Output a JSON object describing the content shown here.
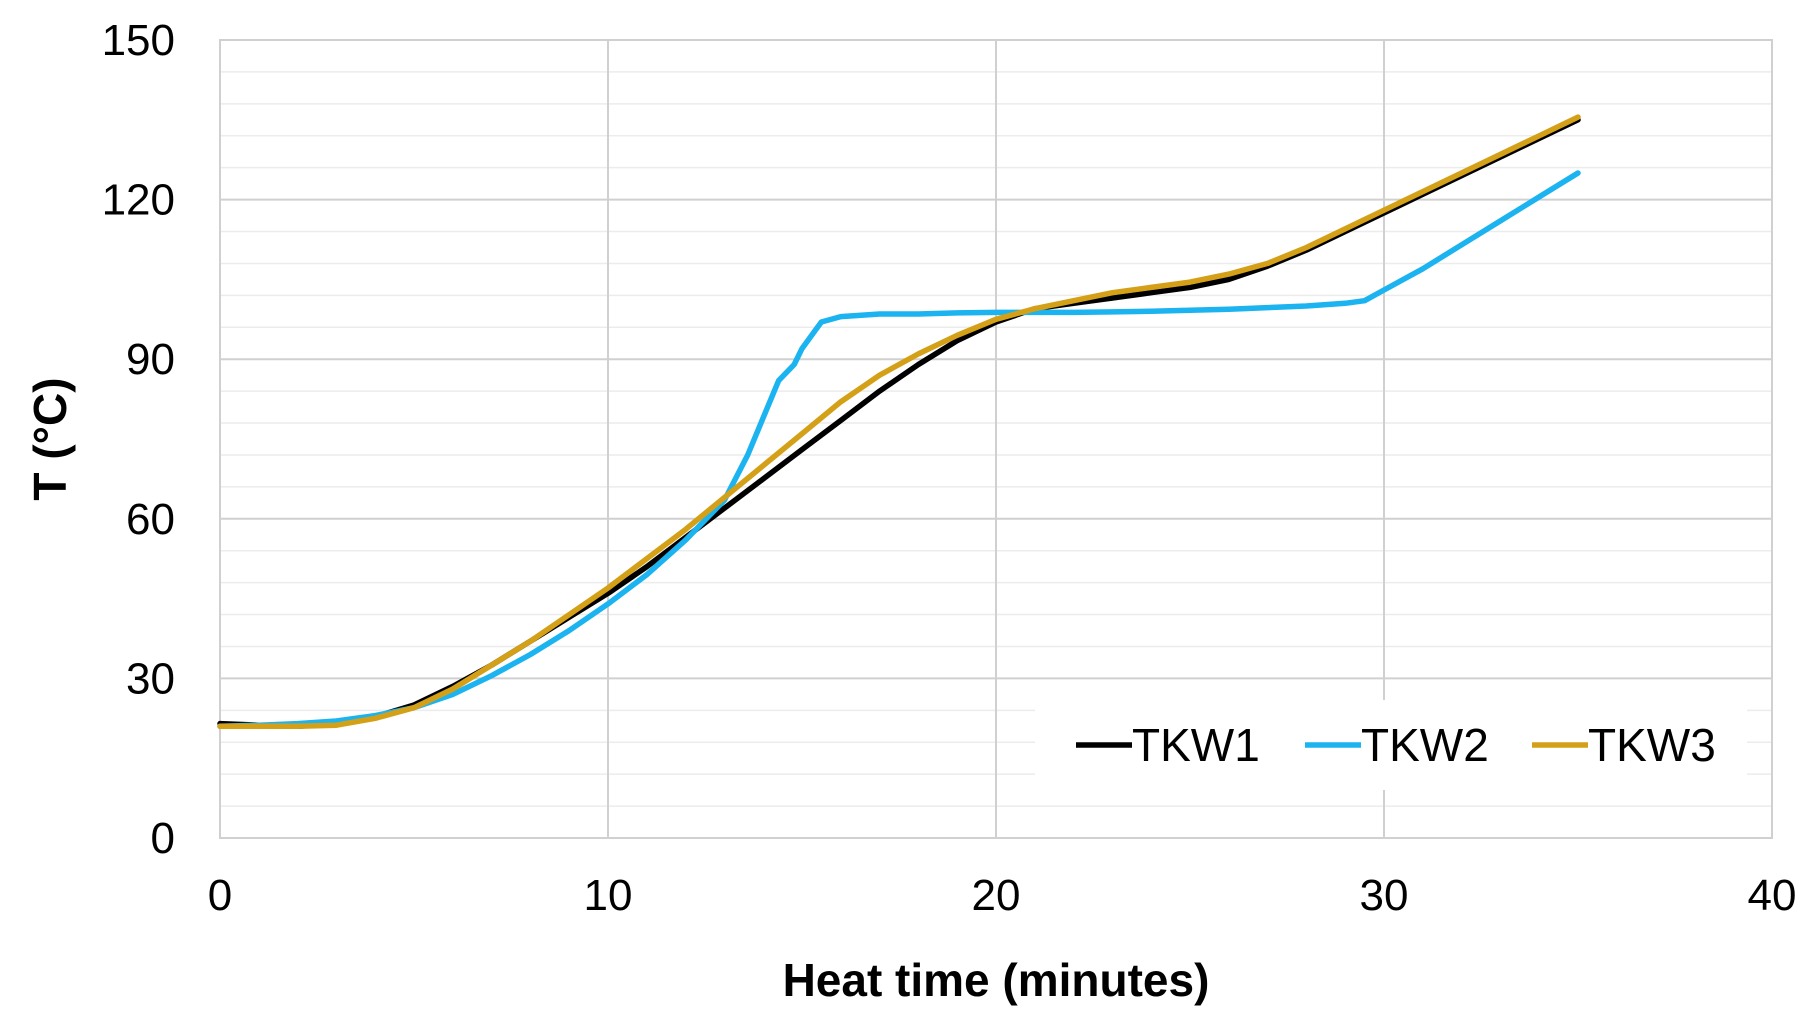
{
  "chart_data": {
    "type": "line",
    "title": "",
    "xlabel": "Heat time (minutes)",
    "ylabel": "T (°C)",
    "xlim": [
      0,
      40
    ],
    "ylim": [
      0,
      150
    ],
    "xticks": [
      0,
      10,
      20,
      30,
      40
    ],
    "yticks": [
      0,
      30,
      60,
      90,
      120,
      150
    ],
    "grid": true,
    "legend_position": "bottom-right",
    "series": [
      {
        "name": "TKW1",
        "color": "#000000",
        "points": [
          [
            0,
            21.5
          ],
          [
            1,
            21.2
          ],
          [
            2,
            21
          ],
          [
            3,
            21.5
          ],
          [
            4,
            22.8
          ],
          [
            5,
            25
          ],
          [
            6,
            28.5
          ],
          [
            7,
            32.5
          ],
          [
            8,
            37
          ],
          [
            9,
            41.5
          ],
          [
            10,
            46
          ],
          [
            11,
            51
          ],
          [
            12,
            56.5
          ],
          [
            13,
            62
          ],
          [
            14,
            67.5
          ],
          [
            15,
            73
          ],
          [
            16,
            78.5
          ],
          [
            17,
            84
          ],
          [
            18,
            89
          ],
          [
            19,
            93.5
          ],
          [
            20,
            97
          ],
          [
            21,
            99.5
          ],
          [
            22,
            100.5
          ],
          [
            23,
            101.5
          ],
          [
            24,
            102.5
          ],
          [
            25,
            103.5
          ],
          [
            26,
            105
          ],
          [
            27,
            107.5
          ],
          [
            28,
            110.5
          ],
          [
            29,
            114
          ],
          [
            30,
            117.5
          ],
          [
            31,
            121
          ],
          [
            32,
            124.5
          ],
          [
            33,
            128
          ],
          [
            34,
            131.5
          ],
          [
            35,
            135
          ]
        ]
      },
      {
        "name": "TKW2",
        "color": "#1BB3F0",
        "points": [
          [
            0,
            21
          ],
          [
            1,
            21.2
          ],
          [
            2,
            21.5
          ],
          [
            3,
            22
          ],
          [
            4,
            23
          ],
          [
            5,
            24.5
          ],
          [
            6,
            27
          ],
          [
            7,
            30.5
          ],
          [
            8,
            34.5
          ],
          [
            9,
            39
          ],
          [
            10,
            44
          ],
          [
            11,
            49.5
          ],
          [
            12,
            56
          ],
          [
            13,
            63.5
          ],
          [
            13.6,
            72
          ],
          [
            14,
            79
          ],
          [
            14.4,
            86
          ],
          [
            14.8,
            89
          ],
          [
            15,
            92
          ],
          [
            15.3,
            95
          ],
          [
            15.5,
            97
          ],
          [
            16,
            98
          ],
          [
            17,
            98.5
          ],
          [
            18,
            98.5
          ],
          [
            19,
            98.7
          ],
          [
            20,
            98.8
          ],
          [
            21,
            98.8
          ],
          [
            22,
            98.8
          ],
          [
            23,
            98.9
          ],
          [
            24,
            99
          ],
          [
            25,
            99.2
          ],
          [
            26,
            99.4
          ],
          [
            27,
            99.7
          ],
          [
            28,
            100
          ],
          [
            29,
            100.5
          ],
          [
            29.5,
            101
          ],
          [
            30,
            103
          ],
          [
            31,
            107
          ],
          [
            32,
            111.5
          ],
          [
            33,
            116
          ],
          [
            34,
            120.5
          ],
          [
            35,
            125
          ]
        ]
      },
      {
        "name": "TKW3",
        "color": "#D4A017",
        "points": [
          [
            0,
            21
          ],
          [
            1,
            21
          ],
          [
            2,
            21
          ],
          [
            3,
            21.2
          ],
          [
            4,
            22.5
          ],
          [
            5,
            24.5
          ],
          [
            6,
            28
          ],
          [
            7,
            32.5
          ],
          [
            8,
            37
          ],
          [
            9,
            42
          ],
          [
            10,
            47
          ],
          [
            11,
            52.5
          ],
          [
            12,
            58
          ],
          [
            13,
            64
          ],
          [
            14,
            70
          ],
          [
            15,
            76
          ],
          [
            16,
            82
          ],
          [
            17,
            87
          ],
          [
            18,
            91
          ],
          [
            19,
            94.5
          ],
          [
            20,
            97.5
          ],
          [
            21,
            99.5
          ],
          [
            22,
            101
          ],
          [
            23,
            102.5
          ],
          [
            24,
            103.5
          ],
          [
            25,
            104.5
          ],
          [
            26,
            106
          ],
          [
            27,
            108
          ],
          [
            28,
            111
          ],
          [
            29,
            114.5
          ],
          [
            30,
            118
          ],
          [
            31,
            121.5
          ],
          [
            32,
            125
          ],
          [
            33,
            128.5
          ],
          [
            34,
            132
          ],
          [
            35,
            135.5
          ]
        ]
      }
    ]
  }
}
